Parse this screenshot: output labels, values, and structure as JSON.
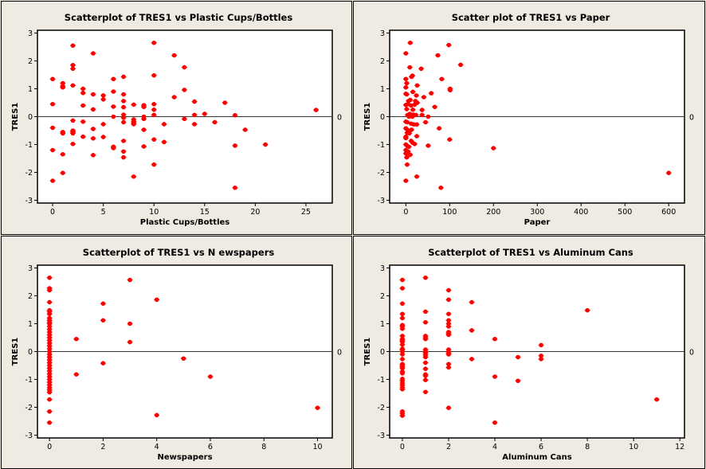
{
  "colors": {
    "point": "#ff0000",
    "background": "#efebe2",
    "plot_bg": "#ffffff",
    "ref_line": "#333333"
  },
  "chart_data": [
    {
      "type": "scatter",
      "title": "Scatterplot of TRES1 vs Plastic Cups/Bottles",
      "xlabel": "Plastic Cups/Bottles",
      "ylabel": "TRES1",
      "xlim": [
        -1.5,
        27.6
      ],
      "ylim": [
        -3.1,
        3.1
      ],
      "xticks": [
        0,
        5,
        10,
        15,
        20,
        25
      ],
      "yticks": [
        -3,
        -2,
        -1,
        0,
        1,
        2,
        3
      ],
      "reference_line": {
        "y": 0,
        "label": "0"
      },
      "grid": false,
      "points": [
        [
          0,
          1.35
        ],
        [
          0,
          0.45
        ],
        [
          0,
          -0.4
        ],
        [
          0,
          -1.2
        ],
        [
          0,
          -2.3
        ],
        [
          1,
          1.2
        ],
        [
          1,
          1.1
        ],
        [
          1,
          1.05
        ],
        [
          1,
          -0.55
        ],
        [
          1,
          -0.6
        ],
        [
          1,
          -1.35
        ],
        [
          1,
          -2.02
        ],
        [
          2,
          2.55
        ],
        [
          2,
          1.85
        ],
        [
          2,
          1.72
        ],
        [
          2,
          1.12
        ],
        [
          2,
          -0.14
        ],
        [
          2,
          -0.5
        ],
        [
          2,
          -0.55
        ],
        [
          2,
          -0.6
        ],
        [
          2,
          -0.98
        ],
        [
          3,
          1.0
        ],
        [
          3,
          0.85
        ],
        [
          3,
          0.4
        ],
        [
          3,
          -0.18
        ],
        [
          3,
          -0.72
        ],
        [
          4,
          2.27
        ],
        [
          4,
          0.8
        ],
        [
          4,
          0.26
        ],
        [
          4,
          -0.44
        ],
        [
          4,
          -0.78
        ],
        [
          4,
          -1.38
        ],
        [
          5,
          0.76
        ],
        [
          5,
          0.62
        ],
        [
          5,
          -0.27
        ],
        [
          5,
          -0.73
        ],
        [
          6,
          1.35
        ],
        [
          6,
          0.9
        ],
        [
          6,
          0.36
        ],
        [
          6,
          0.0
        ],
        [
          6,
          -1.08
        ],
        [
          6,
          -1.13
        ],
        [
          7,
          1.43
        ],
        [
          7,
          0.8
        ],
        [
          7,
          0.56
        ],
        [
          7,
          0.34
        ],
        [
          7,
          0.07
        ],
        [
          7,
          -0.04
        ],
        [
          7,
          -0.2
        ],
        [
          7,
          -0.87
        ],
        [
          7,
          -1.25
        ],
        [
          7,
          -1.46
        ],
        [
          8,
          0.43
        ],
        [
          8,
          -0.1
        ],
        [
          8,
          -0.17
        ],
        [
          8,
          -0.22
        ],
        [
          8,
          -0.27
        ],
        [
          8,
          -2.15
        ],
        [
          9,
          0.41
        ],
        [
          9,
          0.35
        ],
        [
          9,
          0.0
        ],
        [
          9,
          -0.08
        ],
        [
          9,
          -0.47
        ],
        [
          9,
          -1.07
        ],
        [
          10,
          2.65
        ],
        [
          10,
          1.48
        ],
        [
          10,
          0.45
        ],
        [
          10,
          0.25
        ],
        [
          10,
          0.06
        ],
        [
          10,
          -0.82
        ],
        [
          10,
          -1.72
        ],
        [
          11,
          -0.27
        ],
        [
          11,
          -0.91
        ],
        [
          12,
          2.2
        ],
        [
          12,
          0.7
        ],
        [
          13,
          1.77
        ],
        [
          13,
          0.96
        ],
        [
          13,
          -0.08
        ],
        [
          14,
          0.54
        ],
        [
          14,
          0.06
        ],
        [
          14,
          -0.27
        ],
        [
          15,
          0.1
        ],
        [
          16,
          -0.2
        ],
        [
          17,
          0.5
        ],
        [
          18,
          0.05
        ],
        [
          18,
          -1.04
        ],
        [
          18,
          -2.55
        ],
        [
          19,
          -0.47
        ],
        [
          21,
          -1.0
        ],
        [
          26,
          0.24
        ]
      ]
    },
    {
      "type": "scatter",
      "title": "Scatter plot of TRES1 vs Paper",
      "xlabel": "Paper",
      "ylabel": "TRES1",
      "xlim": [
        -37,
        636
      ],
      "ylim": [
        -3.1,
        3.1
      ],
      "xticks": [
        0,
        100,
        200,
        300,
        400,
        500,
        600
      ],
      "yticks": [
        -3,
        -2,
        -1,
        0,
        1,
        2,
        3
      ],
      "reference_line": {
        "y": 0,
        "label": "0"
      },
      "grid": false,
      "points": [
        [
          10,
          2.65
        ],
        [
          0,
          2.27
        ],
        [
          98,
          2.57
        ],
        [
          73,
          2.2
        ],
        [
          125,
          1.86
        ],
        [
          9,
          1.77
        ],
        [
          35,
          1.72
        ],
        [
          15,
          1.47
        ],
        [
          13,
          1.43
        ],
        [
          0,
          1.35
        ],
        [
          82,
          1.35
        ],
        [
          2,
          1.2
        ],
        [
          0,
          1.05
        ],
        [
          26,
          1.12
        ],
        [
          101,
          1.0
        ],
        [
          101,
          0.95
        ],
        [
          0,
          0.82
        ],
        [
          2,
          0.8
        ],
        [
          16,
          0.89
        ],
        [
          58,
          0.84
        ],
        [
          24,
          0.76
        ],
        [
          41,
          0.7
        ],
        [
          6,
          0.56
        ],
        [
          10,
          0.6
        ],
        [
          22,
          0.56
        ],
        [
          26,
          0.5
        ],
        [
          0,
          0.42
        ],
        [
          5,
          0.45
        ],
        [
          12,
          0.4
        ],
        [
          20,
          0.43
        ],
        [
          2,
          0.27
        ],
        [
          16,
          0.25
        ],
        [
          37,
          0.24
        ],
        [
          66,
          0.35
        ],
        [
          4,
          0.06
        ],
        [
          9,
          0.1
        ],
        [
          17,
          0.07
        ],
        [
          23,
          0.06
        ],
        [
          37,
          0.06
        ],
        [
          7,
          0.0
        ],
        [
          15,
          0.0
        ],
        [
          51,
          0.0
        ],
        [
          0,
          -0.18
        ],
        [
          3,
          -0.2
        ],
        [
          12,
          -0.25
        ],
        [
          18,
          -0.28
        ],
        [
          25,
          -0.28
        ],
        [
          45,
          -0.2
        ],
        [
          0,
          -0.42
        ],
        [
          4,
          -0.48
        ],
        [
          9,
          -0.5
        ],
        [
          13,
          -0.47
        ],
        [
          3,
          -0.58
        ],
        [
          8,
          -0.6
        ],
        [
          76,
          -0.42
        ],
        [
          0,
          -0.72
        ],
        [
          0,
          -0.77
        ],
        [
          25,
          -0.7
        ],
        [
          12,
          -0.87
        ],
        [
          15,
          -0.93
        ],
        [
          20,
          -0.98
        ],
        [
          0,
          -1.0
        ],
        [
          3,
          -1.05
        ],
        [
          7,
          -1.08
        ],
        [
          51,
          -1.04
        ],
        [
          100,
          -0.82
        ],
        [
          200,
          -1.13
        ],
        [
          0,
          -1.2
        ],
        [
          2,
          -1.28
        ],
        [
          5,
          -1.25
        ],
        [
          0,
          -1.32
        ],
        [
          10,
          -1.37
        ],
        [
          2,
          -1.46
        ],
        [
          3,
          -1.72
        ],
        [
          25,
          -2.15
        ],
        [
          0,
          -2.3
        ],
        [
          80,
          -2.55
        ],
        [
          600,
          -2.02
        ]
      ]
    },
    {
      "type": "scatter",
      "title": "Scatterplot of TRES1 vs N ewspapers",
      "xlabel": "Newspapers",
      "ylabel": "TRES1",
      "xlim": [
        -0.45,
        10.55
      ],
      "ylim": [
        -3.1,
        3.1
      ],
      "xticks": [
        0,
        2,
        4,
        6,
        8,
        10
      ],
      "yticks": [
        -3,
        -2,
        -1,
        0,
        1,
        2,
        3
      ],
      "reference_line": {
        "y": 0,
        "label": "0"
      },
      "grid": false,
      "points": [
        [
          0,
          2.65
        ],
        [
          0,
          2.27
        ],
        [
          0,
          2.2
        ],
        [
          0,
          1.77
        ],
        [
          0,
          1.48
        ],
        [
          0,
          1.43
        ],
        [
          0,
          1.35
        ],
        [
          0,
          1.2
        ],
        [
          0,
          1.12
        ],
        [
          0,
          1.05
        ],
        [
          0,
          1.0
        ],
        [
          0,
          0.9
        ],
        [
          0,
          0.8
        ],
        [
          0,
          0.7
        ],
        [
          0,
          0.6
        ],
        [
          0,
          0.5
        ],
        [
          0,
          0.4
        ],
        [
          0,
          0.3
        ],
        [
          0,
          0.2
        ],
        [
          0,
          0.1
        ],
        [
          0,
          0.0
        ],
        [
          0,
          -0.1
        ],
        [
          0,
          -0.2
        ],
        [
          0,
          -0.3
        ],
        [
          0,
          -0.4
        ],
        [
          0,
          -0.5
        ],
        [
          0,
          -0.6
        ],
        [
          0,
          -0.7
        ],
        [
          0,
          -0.8
        ],
        [
          0,
          -0.9
        ],
        [
          0,
          -1.0
        ],
        [
          0,
          -1.1
        ],
        [
          0,
          -1.2
        ],
        [
          0,
          -1.3
        ],
        [
          0,
          -1.38
        ],
        [
          0,
          -1.46
        ],
        [
          0,
          -1.72
        ],
        [
          0,
          -2.15
        ],
        [
          0,
          -2.55
        ],
        [
          1,
          0.45
        ],
        [
          1,
          -0.82
        ],
        [
          2,
          1.72
        ],
        [
          2,
          1.12
        ],
        [
          2,
          -0.42
        ],
        [
          3,
          2.57
        ],
        [
          3,
          1.0
        ],
        [
          3,
          0.34
        ],
        [
          4,
          1.86
        ],
        [
          4,
          -2.28
        ],
        [
          5,
          -0.25
        ],
        [
          6,
          -0.9
        ],
        [
          10,
          -2.02
        ]
      ]
    },
    {
      "type": "scatter",
      "title": "Scatterplot of TRES1 vs Aluminum Cans",
      "xlabel": "Aluminum Cans",
      "ylabel": "TRES1",
      "xlim": [
        -0.55,
        12.2
      ],
      "ylim": [
        -3.1,
        3.1
      ],
      "xticks": [
        0,
        2,
        4,
        6,
        8,
        10,
        12
      ],
      "yticks": [
        -3,
        -2,
        -1,
        0,
        1,
        2,
        3
      ],
      "reference_line": {
        "y": 0,
        "label": "0"
      },
      "grid": false,
      "points": [
        [
          0,
          2.57
        ],
        [
          0,
          2.27
        ],
        [
          0,
          1.72
        ],
        [
          0,
          1.35
        ],
        [
          0,
          1.2
        ],
        [
          0,
          0.95
        ],
        [
          0,
          0.9
        ],
        [
          0,
          0.82
        ],
        [
          0,
          0.56
        ],
        [
          0,
          0.45
        ],
        [
          0,
          0.4
        ],
        [
          0,
          0.35
        ],
        [
          0,
          0.25
        ],
        [
          0,
          0.1
        ],
        [
          0,
          0.06
        ],
        [
          0,
          0.0
        ],
        [
          0,
          -0.1
        ],
        [
          0,
          -0.27
        ],
        [
          0,
          -0.45
        ],
        [
          0,
          -0.5
        ],
        [
          0,
          -0.55
        ],
        [
          0,
          -0.6
        ],
        [
          0,
          -0.72
        ],
        [
          0,
          -0.78
        ],
        [
          0,
          -0.98
        ],
        [
          0,
          -1.05
        ],
        [
          0,
          -1.13
        ],
        [
          0,
          -1.2
        ],
        [
          0,
          -1.28
        ],
        [
          0,
          -1.35
        ],
        [
          0,
          -2.15
        ],
        [
          0,
          -2.22
        ],
        [
          0,
          -2.3
        ],
        [
          1,
          2.65
        ],
        [
          1,
          1.43
        ],
        [
          1,
          1.05
        ],
        [
          1,
          0.56
        ],
        [
          1,
          0.5
        ],
        [
          1,
          0.45
        ],
        [
          1,
          0.07
        ],
        [
          1,
          0.0
        ],
        [
          1,
          -0.05
        ],
        [
          1,
          -0.12
        ],
        [
          1,
          -0.2
        ],
        [
          1,
          -0.4
        ],
        [
          1,
          -0.62
        ],
        [
          1,
          -0.82
        ],
        [
          1,
          -0.87
        ],
        [
          1,
          -1.02
        ],
        [
          1,
          -1.45
        ],
        [
          2,
          2.2
        ],
        [
          2,
          1.86
        ],
        [
          2,
          1.35
        ],
        [
          2,
          1.12
        ],
        [
          2,
          1.0
        ],
        [
          2,
          0.9
        ],
        [
          2,
          0.7
        ],
        [
          2,
          0.65
        ],
        [
          2,
          0.6
        ],
        [
          2,
          0.07
        ],
        [
          2,
          0.0
        ],
        [
          2,
          -0.05
        ],
        [
          2,
          -0.1
        ],
        [
          2,
          -0.45
        ],
        [
          2,
          -0.57
        ],
        [
          2,
          -2.02
        ],
        [
          3,
          1.77
        ],
        [
          3,
          0.76
        ],
        [
          3,
          -0.27
        ],
        [
          4,
          0.45
        ],
        [
          4,
          -0.9
        ],
        [
          4,
          -2.55
        ],
        [
          5,
          -0.2
        ],
        [
          5,
          -1.05
        ],
        [
          6,
          0.23
        ],
        [
          6,
          -0.15
        ],
        [
          6,
          -0.27
        ],
        [
          8,
          1.48
        ],
        [
          11,
          -1.72
        ]
      ]
    }
  ]
}
